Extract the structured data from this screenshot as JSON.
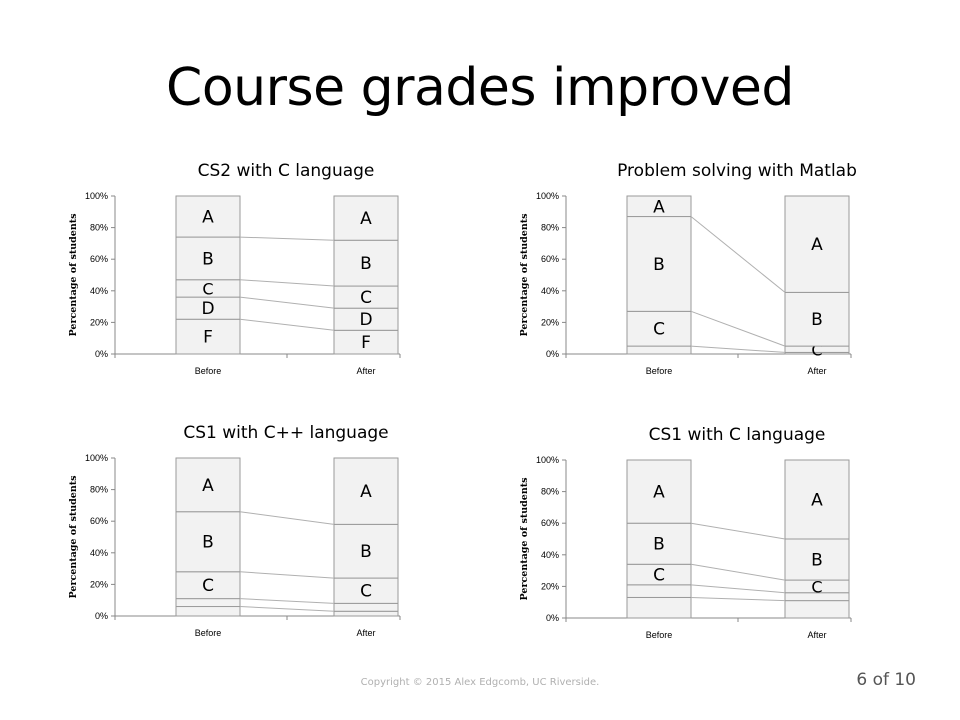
{
  "slide": {
    "title": "Course grades improved",
    "footer": "Copyright © 2015 Alex Edgcomb, UC Riverside.",
    "page": "6 of 10"
  },
  "chart_data": [
    {
      "type": "bar",
      "stacked": true,
      "title": "CS2 with C language",
      "ylabel": "Percentage of students",
      "ylim": [
        0,
        100
      ],
      "yticks": [
        "0%",
        "20%",
        "40%",
        "60%",
        "80%",
        "100%"
      ],
      "categories": [
        "Before",
        "After"
      ],
      "series": [
        {
          "name": "F",
          "values": [
            22,
            15
          ]
        },
        {
          "name": "D",
          "values": [
            14,
            14
          ]
        },
        {
          "name": "C",
          "values": [
            11,
            14
          ]
        },
        {
          "name": "B",
          "values": [
            27,
            29
          ]
        },
        {
          "name": "A",
          "values": [
            26,
            28
          ]
        }
      ],
      "grid": false
    },
    {
      "type": "bar",
      "stacked": true,
      "title": "Problem solving with Matlab",
      "ylabel": "Percentage of students",
      "ylim": [
        0,
        100
      ],
      "yticks": [
        "0%",
        "20%",
        "40%",
        "60%",
        "80%",
        "100%"
      ],
      "categories": [
        "Before",
        "After"
      ],
      "series": [
        {
          "name": "",
          "values": [
            5,
            1
          ]
        },
        {
          "name": "C",
          "values": [
            22,
            4
          ]
        },
        {
          "name": "B",
          "values": [
            60,
            34
          ]
        },
        {
          "name": "A",
          "values": [
            13,
            61
          ]
        }
      ],
      "grid": false
    },
    {
      "type": "bar",
      "stacked": true,
      "title": "CS1 with C++ language",
      "ylabel": "Percentage of students",
      "ylim": [
        0,
        100
      ],
      "yticks": [
        "0%",
        "20%",
        "40%",
        "60%",
        "80%",
        "100%"
      ],
      "categories": [
        "Before",
        "After"
      ],
      "series": [
        {
          "name": "",
          "values": [
            6,
            3
          ]
        },
        {
          "name": "",
          "values": [
            5,
            5
          ]
        },
        {
          "name": "C",
          "values": [
            17,
            16
          ]
        },
        {
          "name": "B",
          "values": [
            38,
            34
          ]
        },
        {
          "name": "A",
          "values": [
            34,
            42
          ]
        }
      ],
      "grid": false
    },
    {
      "type": "bar",
      "stacked": true,
      "title": "CS1 with C language",
      "ylabel": "Percentage of students",
      "ylim": [
        0,
        100
      ],
      "yticks": [
        "0%",
        "20%",
        "40%",
        "60%",
        "80%",
        "100%"
      ],
      "categories": [
        "Before",
        "After"
      ],
      "series": [
        {
          "name": "",
          "values": [
            13,
            11
          ]
        },
        {
          "name": "",
          "values": [
            8,
            5
          ]
        },
        {
          "name": "C",
          "values": [
            13,
            8
          ]
        },
        {
          "name": "B",
          "values": [
            26,
            26
          ]
        },
        {
          "name": "A",
          "values": [
            40,
            50
          ]
        }
      ],
      "grid": false
    }
  ]
}
